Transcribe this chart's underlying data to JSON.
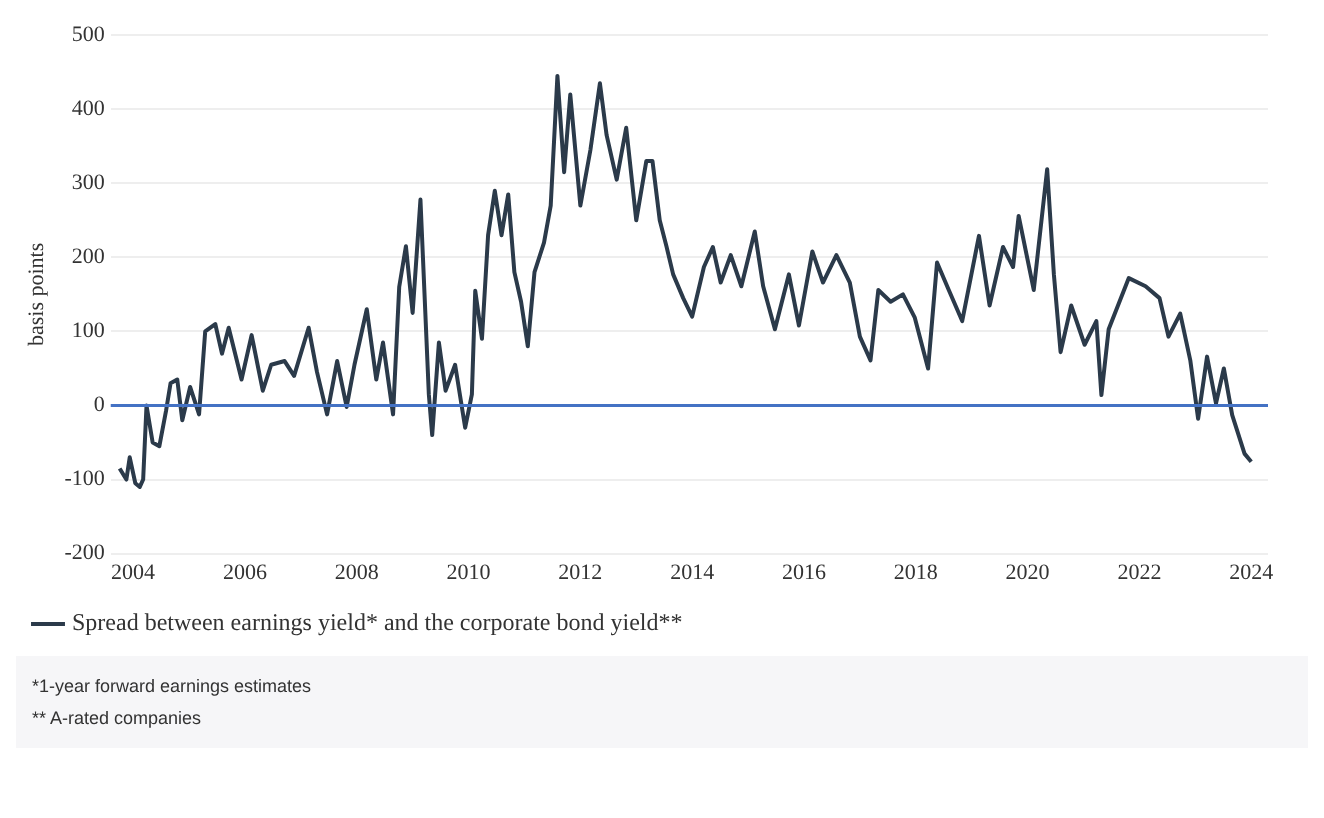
{
  "chart_data": {
    "type": "line",
    "ylabel": "basis points",
    "x": [
      2003.76,
      2003.88,
      2003.94,
      2004.04,
      2004.12,
      2004.18,
      2004.24,
      2004.35,
      2004.47,
      2004.59,
      2004.67,
      2004.79,
      2004.88,
      2005.02,
      2005.18,
      2005.29,
      2005.47,
      2005.59,
      2005.71,
      2005.94,
      2006.12,
      2006.32,
      2006.47,
      2006.71,
      2006.88,
      2007.14,
      2007.29,
      2007.47,
      2007.65,
      2007.82,
      2007.96,
      2008.18,
      2008.35,
      2008.47,
      2008.65,
      2008.76,
      2008.88,
      2009.0,
      2009.14,
      2009.29,
      2009.35,
      2009.47,
      2009.59,
      2009.76,
      2009.94,
      2010.06,
      2010.12,
      2010.24,
      2010.35,
      2010.47,
      2010.59,
      2010.71,
      2010.82,
      2010.94,
      2011.06,
      2011.18,
      2011.35,
      2011.47,
      2011.59,
      2011.71,
      2011.82,
      2012.0,
      2012.18,
      2012.35,
      2012.47,
      2012.65,
      2012.82,
      2013.0,
      2013.18,
      2013.29,
      2013.42,
      2013.54,
      2013.66,
      2013.84,
      2014.0,
      2014.21,
      2014.37,
      2014.51,
      2014.69,
      2014.88,
      2015.12,
      2015.27,
      2015.48,
      2015.73,
      2015.91,
      2016.15,
      2016.34,
      2016.58,
      2016.82,
      2017.0,
      2017.19,
      2017.33,
      2017.55,
      2017.77,
      2017.98,
      2018.22,
      2018.38,
      2018.59,
      2018.83,
      2019.13,
      2019.32,
      2019.56,
      2019.74,
      2019.84,
      2020.11,
      2020.35,
      2020.47,
      2020.59,
      2020.78,
      2021.02,
      2021.23,
      2021.32,
      2021.45,
      2021.81,
      2022.11,
      2022.36,
      2022.52,
      2022.73,
      2022.91,
      2023.05,
      2023.21,
      2023.37,
      2023.51,
      2023.66,
      2023.88,
      2024.0
    ],
    "series": [
      {
        "name": "Spread between earnings yield* and the corporate bond yield**",
        "color": "#2b3a4a",
        "values": [
          -85,
          -100,
          -70,
          -105,
          -110,
          -100,
          0,
          -50,
          -55,
          -7,
          30,
          35,
          -20,
          25,
          -12,
          100,
          110,
          70,
          105,
          35,
          95,
          20,
          55,
          60,
          40,
          105,
          45,
          -12,
          60,
          -2,
          55,
          130,
          35,
          85,
          -12,
          160,
          215,
          125,
          278,
          15,
          -40,
          85,
          20,
          55,
          -30,
          15,
          155,
          90,
          230,
          290,
          230,
          285,
          180,
          140,
          80,
          180,
          220,
          270,
          445,
          315,
          420,
          270,
          345,
          435,
          365,
          305,
          375,
          250,
          330,
          330,
          250,
          215,
          177,
          145,
          120,
          187,
          214,
          166,
          203,
          161,
          235,
          161,
          103,
          177,
          108,
          208,
          166,
          203,
          166,
          93,
          61,
          156,
          140,
          150,
          119,
          50,
          193,
          156,
          114,
          229,
          135,
          214,
          187,
          256,
          156,
          319,
          177,
          72,
          135,
          82,
          114,
          14,
          103,
          172,
          161,
          145,
          93,
          124,
          61,
          -18,
          66,
          3,
          50,
          -13,
          -65,
          -76
        ]
      }
    ],
    "xlim": [
      2003.6,
      2024.3
    ],
    "xticks": [
      2004,
      2006,
      2008,
      2010,
      2012,
      2014,
      2016,
      2018,
      2020,
      2022,
      2024
    ],
    "ylim": [
      -200,
      500
    ],
    "yticks": [
      -200,
      -100,
      0,
      100,
      200,
      300,
      400,
      500
    ],
    "ref_lines": [
      {
        "axis": "y",
        "value": 0,
        "color": "#4472c4"
      }
    ],
    "grid": "y",
    "legend": "bottom left",
    "marker": "none",
    "line_style": "solid",
    "annotations": [
      "*1-year forward earnings estimates",
      "** A-rated companies"
    ]
  }
}
